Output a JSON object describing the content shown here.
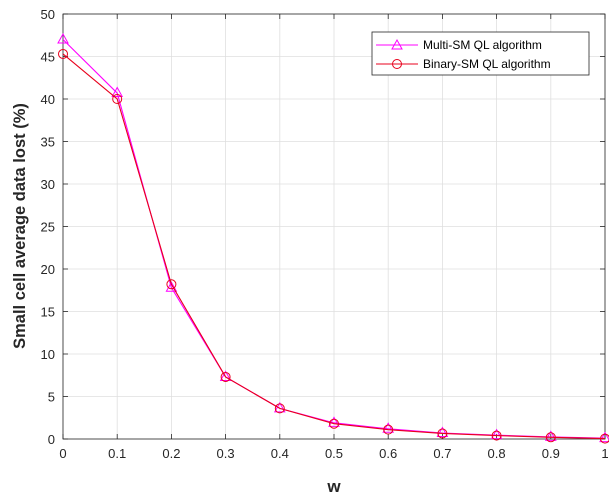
{
  "chart_data": {
    "type": "line",
    "xlabel": "w",
    "ylabel": "Small cell average data lost (%)",
    "x": [
      0,
      0.1,
      0.2,
      0.3,
      0.4,
      0.5,
      0.6,
      0.7,
      0.8,
      0.9,
      1
    ],
    "xlim": [
      0,
      1
    ],
    "ylim": [
      0,
      50
    ],
    "xticks": [
      "0",
      "0.1",
      "0.2",
      "0.3",
      "0.4",
      "0.5",
      "0.6",
      "0.7",
      "0.8",
      "0.9",
      "1"
    ],
    "yticks": [
      "0",
      "5",
      "10",
      "15",
      "20",
      "25",
      "30",
      "35",
      "40",
      "45",
      "50"
    ],
    "grid": true,
    "legend_position": "top-right",
    "series": [
      {
        "name": "Multi-SM QL algorithm",
        "values": [
          47.0,
          40.7,
          17.8,
          7.3,
          3.6,
          1.9,
          1.2,
          0.7,
          0.45,
          0.25,
          0.1
        ],
        "color": "#ff00ff",
        "marker": "triangle"
      },
      {
        "name": "Binary-SM QL algorithm",
        "values": [
          45.3,
          40.0,
          18.2,
          7.3,
          3.6,
          1.8,
          1.1,
          0.65,
          0.4,
          0.2,
          0.05
        ],
        "color": "#e8001c",
        "marker": "circle"
      }
    ]
  }
}
